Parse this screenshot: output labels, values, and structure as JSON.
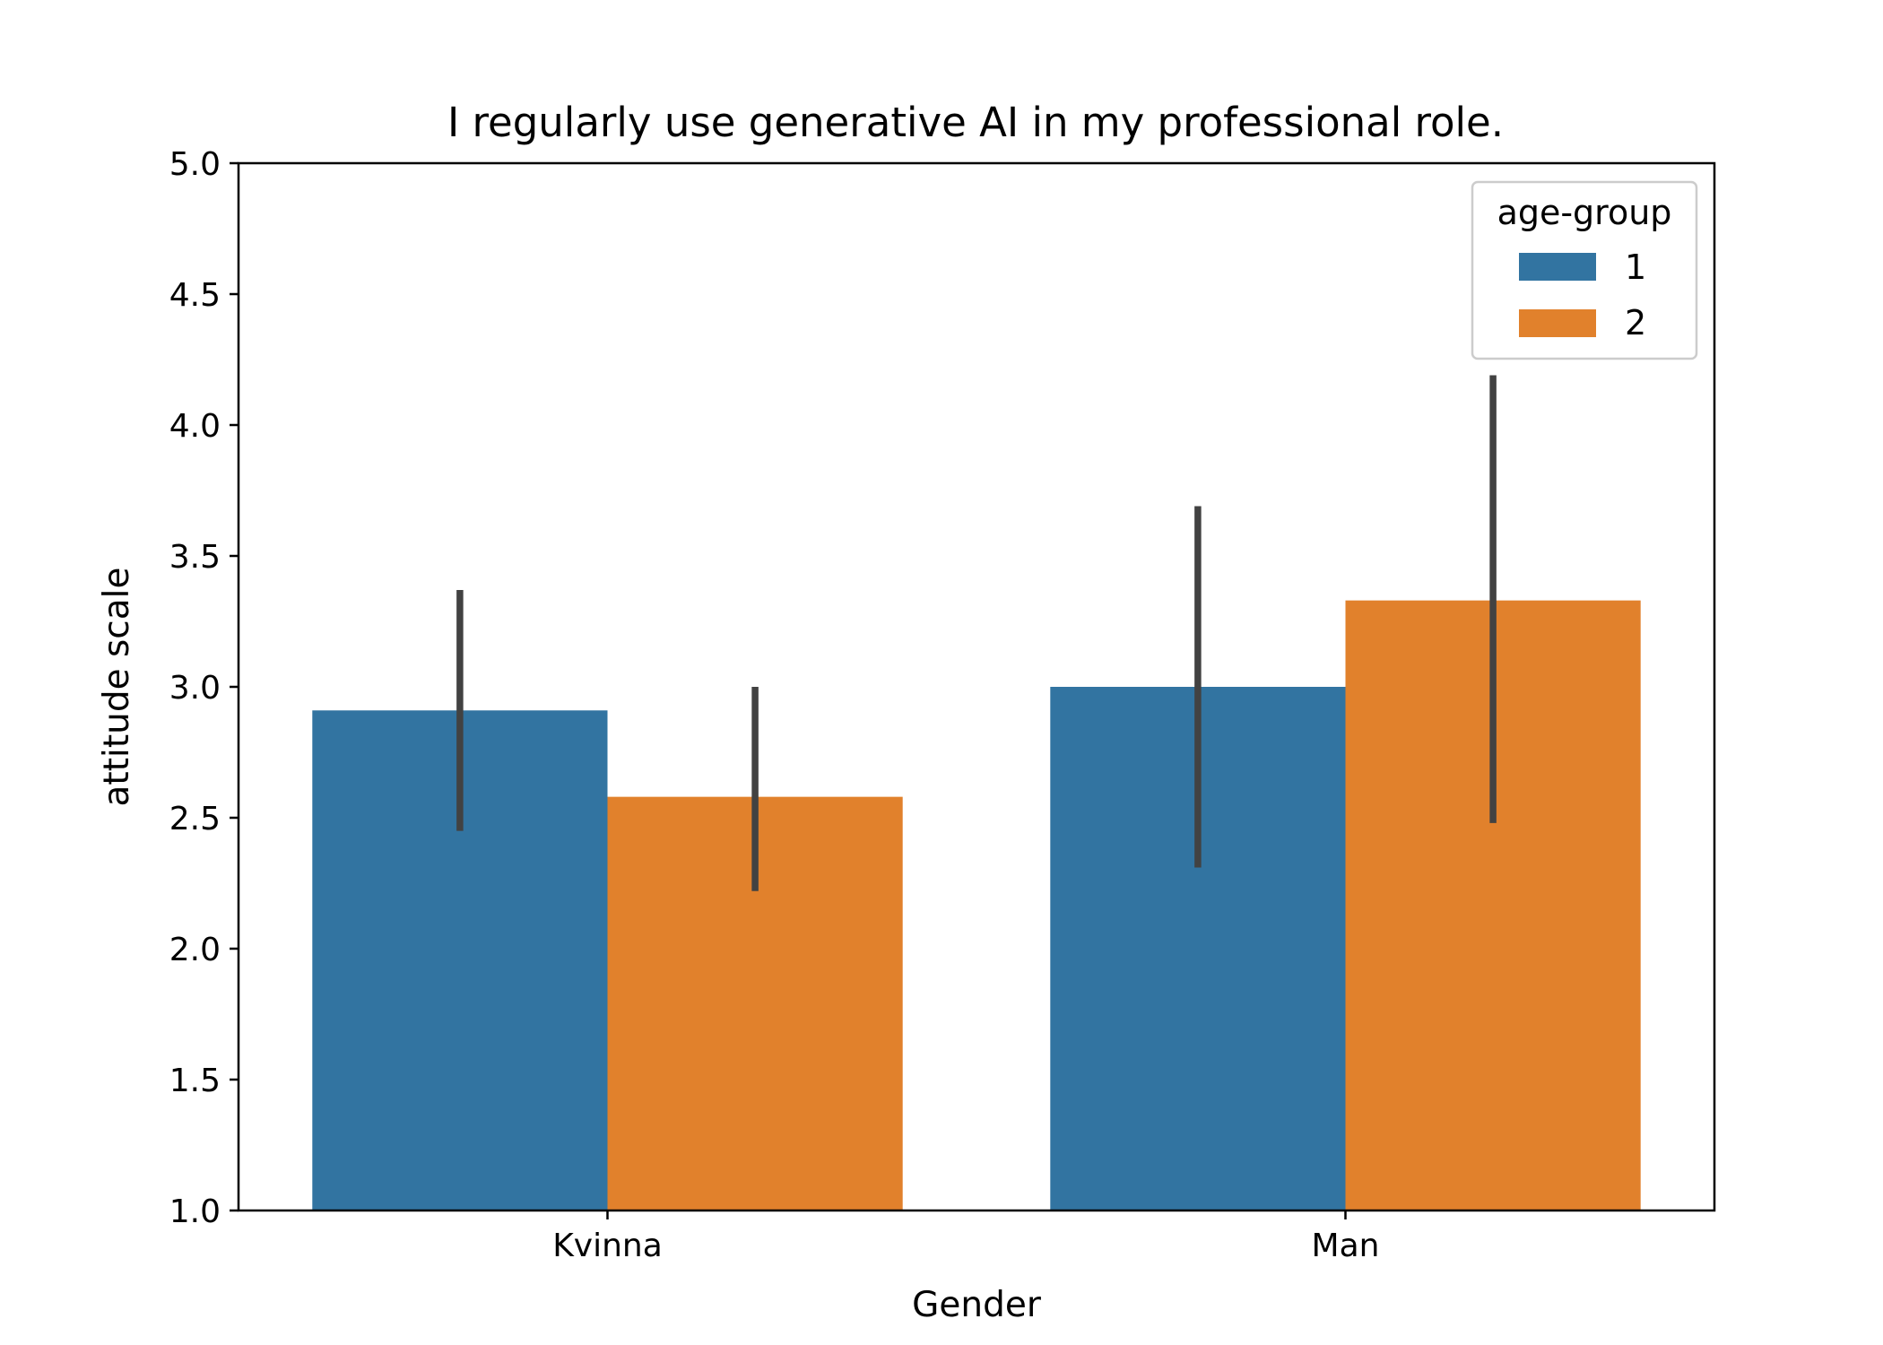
{
  "chart_data": {
    "type": "bar",
    "title": "I regularly use generative AI in my professional role.",
    "xlabel": "Gender",
    "ylabel": "attitude scale",
    "categories": [
      "Kvinna",
      "Man"
    ],
    "ylim": [
      1.0,
      5.0
    ],
    "yticks": [
      "1.0",
      "1.5",
      "2.0",
      "2.5",
      "3.0",
      "3.5",
      "4.0",
      "4.5",
      "5.0"
    ],
    "grid": false,
    "legend": {
      "title": "age-group",
      "placement": "upper right"
    },
    "series": [
      {
        "name": "1",
        "color": "#3274a1",
        "values": [
          2.91,
          3.0
        ],
        "error_low": [
          2.45,
          2.31
        ],
        "error_high": [
          3.37,
          3.69
        ]
      },
      {
        "name": "2",
        "color": "#e1812c",
        "values": [
          2.58,
          3.33
        ],
        "error_low": [
          2.22,
          2.48
        ],
        "error_high": [
          3.0,
          4.19
        ]
      }
    ],
    "errorbar_color": "#424242"
  }
}
